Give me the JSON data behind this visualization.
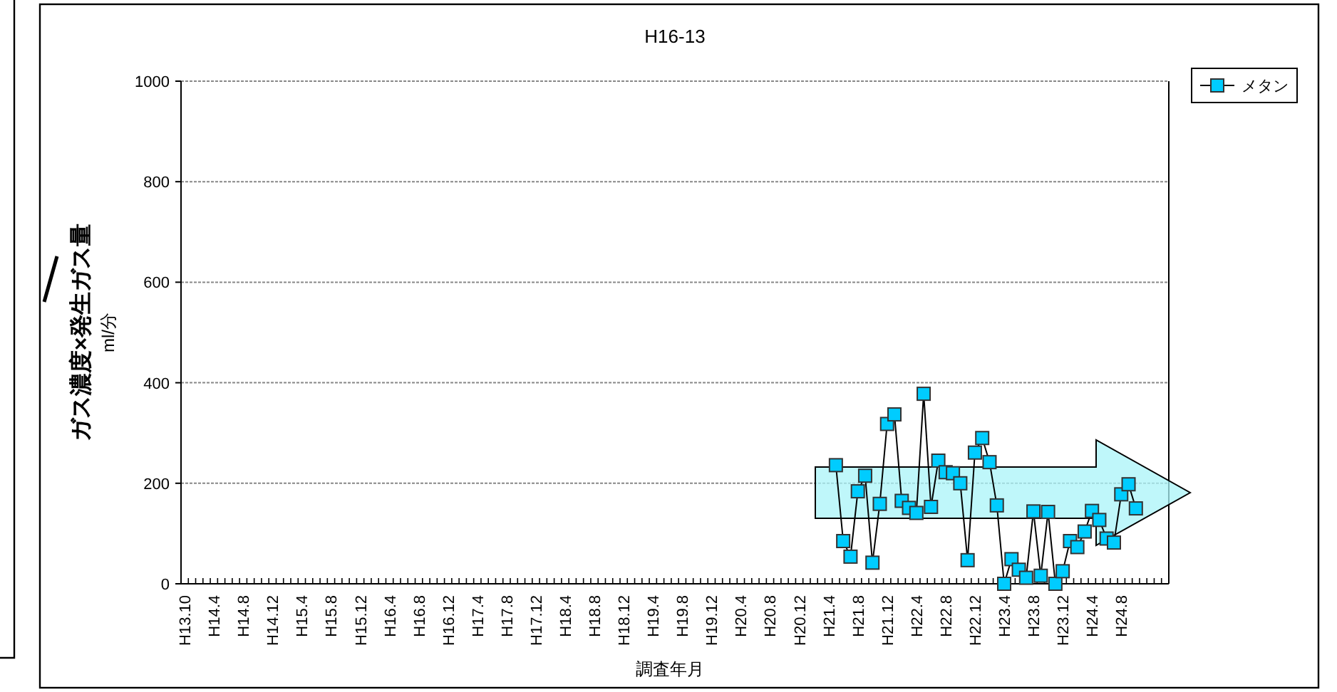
{
  "chart_data": {
    "type": "line",
    "title": "H16-13",
    "xlabel": "調査年月",
    "ylabel": "ガス濃度×発生ガス量\nml/分",
    "categories": [
      "H13.10",
      null,
      null,
      null,
      "H14.4",
      null,
      null,
      null,
      "H14.8",
      null,
      null,
      null,
      "H14.12",
      null,
      null,
      null,
      "H15.4",
      null,
      null,
      null,
      "H15.8",
      null,
      null,
      null,
      "H15.12",
      null,
      null,
      null,
      "H16.4",
      null,
      null,
      null,
      "H16.8",
      null,
      null,
      null,
      "H16.12",
      null,
      null,
      null,
      "H17.4",
      null,
      null,
      null,
      "H17.8",
      null,
      null,
      null,
      "H17.12",
      null,
      null,
      null,
      "H18.4",
      null,
      null,
      null,
      "H18.8",
      null,
      null,
      null,
      "H18.12",
      null,
      null,
      null,
      "H19.4",
      null,
      null,
      null,
      "H19.8",
      null,
      null,
      null,
      "H19.12",
      null,
      null,
      null,
      "H20.4",
      null,
      null,
      null,
      "H20.8",
      null,
      null,
      null,
      "H20.12",
      null,
      null,
      null,
      "H21.4",
      null,
      null,
      null,
      "H21.8",
      null,
      null,
      null,
      "H21.12",
      null,
      null,
      null,
      "H22.4",
      null,
      null,
      null,
      "H22.8",
      null,
      null,
      null,
      "H22.12",
      null,
      null,
      null,
      "H23.4",
      null,
      null,
      null,
      "H23.8",
      null,
      null,
      null,
      "H23.12",
      null,
      null,
      null,
      "H24.4",
      null,
      null,
      null,
      "H24.8",
      null,
      null,
      null,
      null,
      null,
      null
    ],
    "series": [
      {
        "name": "メタン",
        "color": "#00ccff",
        "values": [
          null,
          null,
          null,
          null,
          null,
          null,
          null,
          null,
          null,
          null,
          null,
          null,
          null,
          null,
          null,
          null,
          null,
          null,
          null,
          null,
          null,
          null,
          null,
          null,
          null,
          null,
          null,
          null,
          null,
          null,
          null,
          null,
          null,
          null,
          null,
          null,
          null,
          null,
          null,
          null,
          null,
          null,
          null,
          null,
          null,
          null,
          null,
          null,
          null,
          null,
          null,
          null,
          null,
          null,
          null,
          null,
          null,
          null,
          null,
          null,
          null,
          null,
          null,
          null,
          null,
          null,
          null,
          null,
          null,
          null,
          null,
          null,
          null,
          null,
          null,
          null,
          null,
          null,
          null,
          null,
          null,
          null,
          null,
          null,
          null,
          null,
          null,
          null,
          null,
          236,
          85,
          54,
          184,
          215,
          42,
          159,
          318,
          337,
          165,
          151,
          141,
          378,
          153,
          245,
          222,
          220,
          200,
          47,
          261,
          290,
          242,
          156,
          0,
          49,
          28,
          12,
          144,
          16,
          143,
          0,
          25,
          85,
          73,
          104,
          145,
          127,
          90,
          82,
          178,
          198,
          150,
          null,
          null,
          null,
          null
        ]
      }
    ],
    "ylim": [
      0,
      1000
    ],
    "yticks": [
      0,
      200,
      400,
      600,
      800,
      1000
    ],
    "grid": "y",
    "legend": "top right",
    "marker": "square",
    "line_style": "solid"
  }
}
